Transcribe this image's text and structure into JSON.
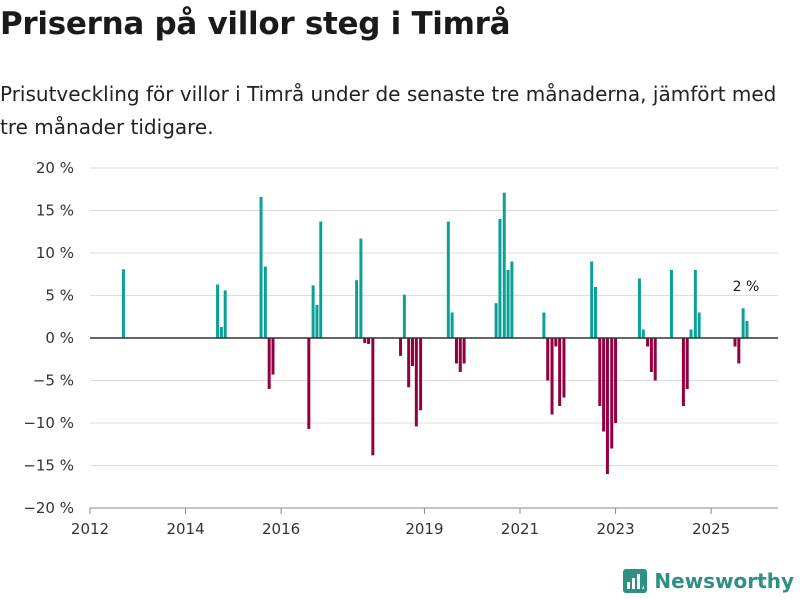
{
  "title": "Priserna på villor steg i Timrå",
  "subtitle": "Prisutveckling för villor i Timrå under de senaste tre månaderna, jämfört med tre månader tidigare.",
  "brand": "Newsworthy",
  "colors": {
    "positive": "#0da196",
    "negative": "#94003f",
    "grid": "#dddddd",
    "zero": "#333333",
    "brand": "#2e8f83"
  },
  "chart_data": {
    "type": "bar",
    "title": "Priserna på villor steg i Timrå",
    "xlabel": "",
    "ylabel": "",
    "xlim": [
      2012,
      2026.4
    ],
    "ylim": [
      -20,
      20
    ],
    "y_ticks": [
      20,
      15,
      10,
      5,
      0,
      -5,
      -10,
      -15,
      -20
    ],
    "y_tick_labels": [
      "20 %",
      "15 %",
      "10 %",
      "5 %",
      "0 %",
      "−5 %",
      "−10 %",
      "−15 %",
      "−20 %"
    ],
    "x_ticks": [
      2012,
      2014,
      2016,
      2019,
      2021,
      2023,
      2025
    ],
    "x_tick_labels": [
      "2012",
      "2014",
      "2016",
      "2019",
      "2021",
      "2023",
      "2025"
    ],
    "annotation": {
      "x": 2025.75,
      "y": 2,
      "text": "2 %"
    },
    "series": [
      {
        "name": "Prisutveckling",
        "values": [
          {
            "x": 2012.7,
            "y": 8.1
          },
          {
            "x": 2014.67,
            "y": 6.3
          },
          {
            "x": 2014.75,
            "y": 1.3
          },
          {
            "x": 2014.83,
            "y": 5.6
          },
          {
            "x": 2015.58,
            "y": 16.6
          },
          {
            "x": 2015.67,
            "y": 8.4
          },
          {
            "x": 2015.75,
            "y": -6.0
          },
          {
            "x": 2015.83,
            "y": -4.3
          },
          {
            "x": 2016.58,
            "y": -10.7
          },
          {
            "x": 2016.67,
            "y": 6.2
          },
          {
            "x": 2016.75,
            "y": 3.9
          },
          {
            "x": 2016.83,
            "y": 13.7
          },
          {
            "x": 2017.58,
            "y": 6.8
          },
          {
            "x": 2017.67,
            "y": 11.7
          },
          {
            "x": 2017.75,
            "y": -0.6
          },
          {
            "x": 2017.83,
            "y": -0.7
          },
          {
            "x": 2017.92,
            "y": -13.8
          },
          {
            "x": 2018.5,
            "y": -2.1
          },
          {
            "x": 2018.58,
            "y": 5.1
          },
          {
            "x": 2018.67,
            "y": -5.8
          },
          {
            "x": 2018.75,
            "y": -3.3
          },
          {
            "x": 2018.83,
            "y": -10.4
          },
          {
            "x": 2018.92,
            "y": -8.5
          },
          {
            "x": 2019.5,
            "y": 13.7
          },
          {
            "x": 2019.58,
            "y": 3.0
          },
          {
            "x": 2019.67,
            "y": -3.0
          },
          {
            "x": 2019.75,
            "y": -4.0
          },
          {
            "x": 2019.83,
            "y": -3.0
          },
          {
            "x": 2020.5,
            "y": 4.1
          },
          {
            "x": 2020.58,
            "y": 14.0
          },
          {
            "x": 2020.67,
            "y": 17.1
          },
          {
            "x": 2020.75,
            "y": 8.0
          },
          {
            "x": 2020.83,
            "y": 9.0
          },
          {
            "x": 2021.5,
            "y": 3.0
          },
          {
            "x": 2021.58,
            "y": -5.0
          },
          {
            "x": 2021.67,
            "y": -9.0
          },
          {
            "x": 2021.75,
            "y": -1.0
          },
          {
            "x": 2021.83,
            "y": -8.0
          },
          {
            "x": 2021.92,
            "y": -7.0
          },
          {
            "x": 2022.5,
            "y": 9.0
          },
          {
            "x": 2022.58,
            "y": 6.0
          },
          {
            "x": 2022.67,
            "y": -8.0
          },
          {
            "x": 2022.75,
            "y": -11.0
          },
          {
            "x": 2022.83,
            "y": -16.0
          },
          {
            "x": 2022.92,
            "y": -13.0
          },
          {
            "x": 2023.0,
            "y": -10.0
          },
          {
            "x": 2023.5,
            "y": 7.0
          },
          {
            "x": 2023.58,
            "y": 1.0
          },
          {
            "x": 2023.67,
            "y": -1.0
          },
          {
            "x": 2023.75,
            "y": -4.0
          },
          {
            "x": 2023.83,
            "y": -5.0
          },
          {
            "x": 2024.17,
            "y": 8.0
          },
          {
            "x": 2024.42,
            "y": -8.0
          },
          {
            "x": 2024.5,
            "y": -6.0
          },
          {
            "x": 2024.58,
            "y": 1.0
          },
          {
            "x": 2024.67,
            "y": 8.0
          },
          {
            "x": 2024.75,
            "y": 3.0
          },
          {
            "x": 2025.5,
            "y": -1.0
          },
          {
            "x": 2025.58,
            "y": -3.0
          },
          {
            "x": 2025.67,
            "y": 3.5
          },
          {
            "x": 2025.75,
            "y": 2.0
          }
        ]
      }
    ]
  }
}
